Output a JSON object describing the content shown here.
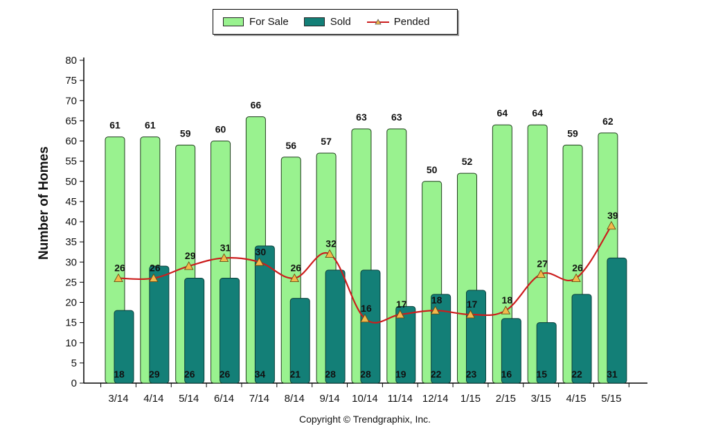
{
  "legend": {
    "for_sale": "For Sale",
    "sold": "Sold",
    "pended": "Pended"
  },
  "copyright": "Copyright © Trendgraphix, Inc.",
  "colors": {
    "for_sale": "#99f28f",
    "sold": "#137f77",
    "pended": "#cc1d1d",
    "marker": "#f2b84b"
  },
  "chart_data": {
    "type": "bar",
    "title": "",
    "xlabel": "",
    "ylabel": "Number of Homes",
    "ylim": [
      0,
      80
    ],
    "yticks": [
      0,
      5,
      10,
      15,
      20,
      25,
      30,
      35,
      40,
      45,
      50,
      55,
      60,
      65,
      70,
      75,
      80
    ],
    "grid": false,
    "legend_position": "top-center",
    "categories": [
      "3/14",
      "4/14",
      "5/14",
      "6/14",
      "7/14",
      "8/14",
      "9/14",
      "10/14",
      "11/14",
      "12/14",
      "1/15",
      "2/15",
      "3/15",
      "4/15",
      "5/15"
    ],
    "series": [
      {
        "name": "For Sale",
        "type": "bar",
        "values": [
          61,
          61,
          59,
          60,
          66,
          56,
          57,
          63,
          63,
          50,
          52,
          64,
          64,
          59,
          62
        ]
      },
      {
        "name": "Sold",
        "type": "bar",
        "values": [
          18,
          29,
          26,
          26,
          34,
          21,
          28,
          28,
          19,
          22,
          23,
          16,
          15,
          22,
          31
        ]
      },
      {
        "name": "Pended",
        "type": "line",
        "values": [
          26,
          26,
          29,
          31,
          30,
          26,
          32,
          16,
          17,
          18,
          17,
          18,
          27,
          26,
          39
        ]
      }
    ]
  }
}
